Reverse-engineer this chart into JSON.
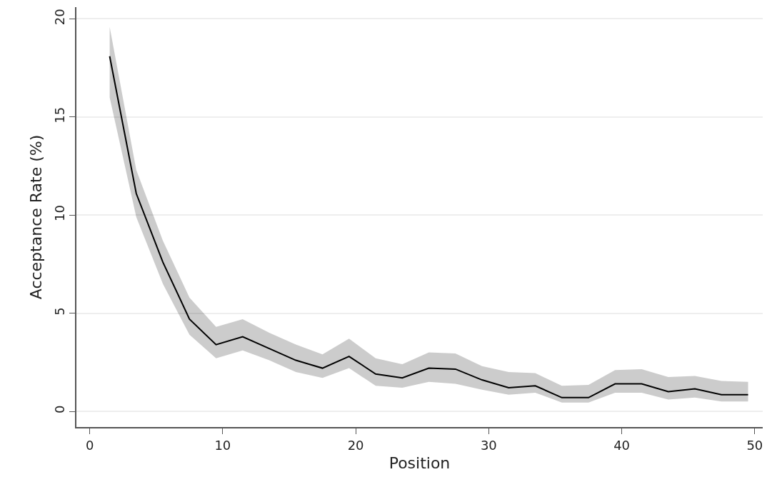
{
  "chart_data": {
    "type": "line",
    "xlabel": "Position",
    "ylabel": "Acceptance Rate (%)",
    "x": [
      1.5,
      3.5,
      5.5,
      7.5,
      9.5,
      11.5,
      13.5,
      15.5,
      17.5,
      19.5,
      21.5,
      23.5,
      25.5,
      27.5,
      29.5,
      31.5,
      33.5,
      35.5,
      37.5,
      39.5,
      41.5,
      43.5,
      45.5,
      47.5,
      49.5
    ],
    "series": [
      {
        "color": "#000000",
        "values": [
          18.1,
          11.1,
          7.6,
          4.7,
          3.4,
          3.8,
          3.2,
          2.6,
          2.2,
          2.8,
          1.9,
          1.7,
          2.2,
          2.15,
          1.6,
          1.2,
          1.3,
          0.7,
          0.7,
          1.4,
          1.4,
          1.0,
          1.15,
          0.85,
          0.85
        ],
        "lower": [
          16.0,
          9.9,
          6.5,
          3.9,
          2.7,
          3.1,
          2.6,
          2.0,
          1.7,
          2.2,
          1.3,
          1.2,
          1.5,
          1.4,
          1.1,
          0.85,
          0.95,
          0.45,
          0.45,
          0.95,
          0.95,
          0.6,
          0.7,
          0.5,
          0.5
        ],
        "upper": [
          19.6,
          12.3,
          8.7,
          5.8,
          4.3,
          4.7,
          4.0,
          3.4,
          2.9,
          3.7,
          2.7,
          2.4,
          3.0,
          2.95,
          2.3,
          2.0,
          1.95,
          1.3,
          1.35,
          2.1,
          2.15,
          1.75,
          1.8,
          1.55,
          1.5
        ]
      }
    ],
    "xlim": [
      -1,
      50.6
    ],
    "xticks": [
      0,
      10,
      20,
      30,
      40,
      50
    ],
    "ylim": [
      -0.8,
      20.6
    ],
    "yticks": [
      0,
      5,
      10,
      15,
      20
    ],
    "grid": "y",
    "marker": "none",
    "line_style": "solid"
  }
}
